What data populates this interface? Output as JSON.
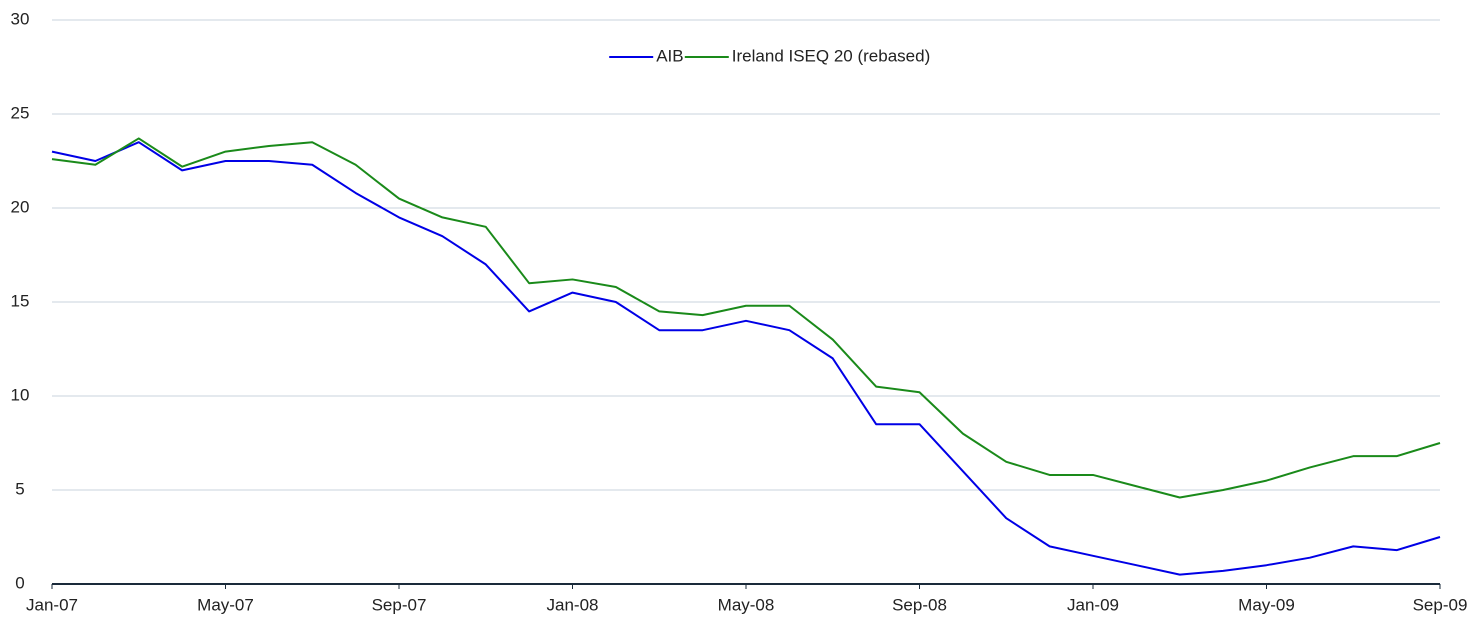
{
  "chart_data": {
    "type": "line",
    "x": [
      "2007-01",
      "2007-02",
      "2007-03",
      "2007-04",
      "2007-05",
      "2007-06",
      "2007-07",
      "2007-08",
      "2007-09",
      "2007-10",
      "2007-11",
      "2007-12",
      "2008-01",
      "2008-02",
      "2008-03",
      "2008-04",
      "2008-05",
      "2008-06",
      "2008-07",
      "2008-08",
      "2008-09",
      "2008-10",
      "2008-11",
      "2008-12",
      "2009-01",
      "2009-02",
      "2009-03",
      "2009-04",
      "2009-05",
      "2009-06",
      "2009-07",
      "2009-08",
      "2009-09"
    ],
    "series": [
      {
        "name": "AIB",
        "color": "#0000e6",
        "values": [
          23.0,
          22.5,
          23.5,
          22.0,
          22.5,
          22.5,
          22.3,
          20.8,
          19.5,
          18.5,
          17.0,
          14.5,
          15.5,
          15.0,
          13.5,
          13.5,
          14.0,
          13.5,
          12.0,
          8.5,
          8.5,
          6.0,
          3.5,
          2.0,
          1.5,
          1.0,
          0.5,
          0.7,
          1.0,
          1.4,
          2.0,
          1.8,
          2.5
        ]
      },
      {
        "name": "Ireland ISEQ 20 (rebased)",
        "color": "#1a8a1a",
        "values": [
          22.6,
          22.3,
          23.7,
          22.2,
          23.0,
          23.3,
          23.5,
          22.3,
          20.5,
          19.5,
          19.0,
          16.0,
          16.2,
          15.8,
          14.5,
          14.3,
          14.8,
          14.8,
          13.0,
          10.5,
          10.2,
          8.0,
          6.5,
          5.8,
          5.8,
          5.2,
          4.6,
          5.0,
          5.5,
          6.2,
          6.8,
          6.8,
          7.5
        ]
      }
    ],
    "xlim": [
      "2007-01",
      "2009-09"
    ],
    "xticks": [
      {
        "value": "2007-01",
        "label": "Jan-07"
      },
      {
        "value": "2007-05",
        "label": "May-07"
      },
      {
        "value": "2007-09",
        "label": "Sep-07"
      },
      {
        "value": "2008-01",
        "label": "Jan-08"
      },
      {
        "value": "2008-05",
        "label": "May-08"
      },
      {
        "value": "2008-09",
        "label": "Sep-08"
      },
      {
        "value": "2009-01",
        "label": "Jan-09"
      },
      {
        "value": "2009-05",
        "label": "May-09"
      },
      {
        "value": "2009-09",
        "label": "Sep-09"
      }
    ],
    "ylim": [
      0,
      30
    ],
    "yticks": [
      0,
      5,
      10,
      15,
      20,
      25,
      30
    ],
    "grid": true,
    "legend": "top"
  }
}
